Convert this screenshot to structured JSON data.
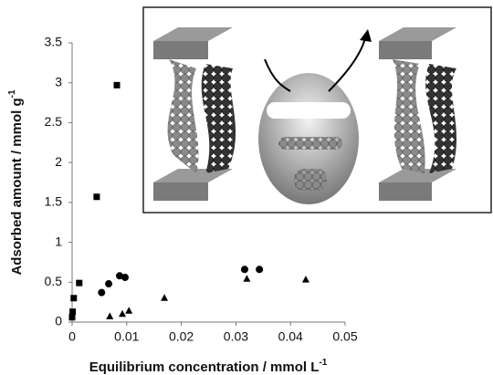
{
  "chart_data": {
    "type": "scatter",
    "xlabel": "Equilibrium concentration / mmol L",
    "xlabel_sup": "-1",
    "ylabel": "Adsorbed amount / mmol g",
    "ylabel_sup": "-1",
    "xlim": [
      0,
      0.05
    ],
    "xticks": [
      0,
      0.01,
      0.02,
      0.03,
      0.04,
      0.05
    ],
    "ylim": [
      0,
      3.5
    ],
    "yticks": [
      0,
      0.5,
      1,
      1.5,
      2,
      2.5,
      3,
      3.5
    ],
    "grid": false,
    "series": [
      {
        "marker": "square",
        "color": "#000000",
        "x": [
          0,
          0.0001,
          0.0003,
          0.0013,
          0.0045,
          0.0082
        ],
        "y": [
          0.06,
          0.13,
          0.3,
          0.49,
          1.57,
          2.97
        ]
      },
      {
        "marker": "circle",
        "color": "#000000",
        "x": [
          0.0054,
          0.0067,
          0.0087,
          0.0097,
          0.0316,
          0.0343
        ],
        "y": [
          0.37,
          0.48,
          0.58,
          0.56,
          0.66,
          0.66
        ]
      },
      {
        "marker": "triangle",
        "color": "#000000",
        "x": [
          0.0069,
          0.0092,
          0.0104,
          0.0169,
          0.032,
          0.0428
        ],
        "y": [
          0.07,
          0.1,
          0.14,
          0.3,
          0.54,
          0.53
        ]
      }
    ]
  }
}
